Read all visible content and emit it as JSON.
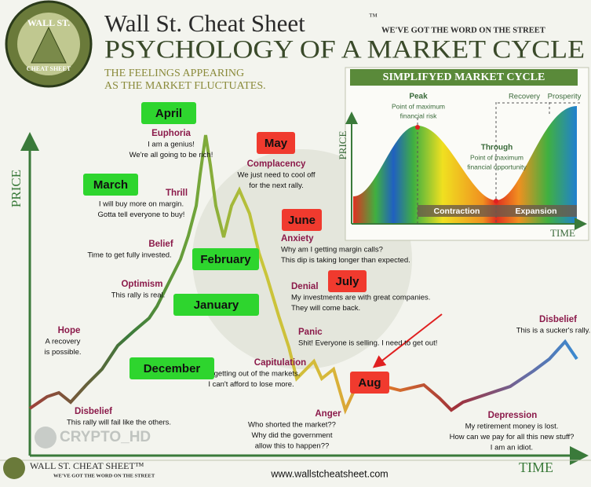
{
  "header": {
    "logo_top": "WALL ST.",
    "logo_bottom": "CHEAT SHEET",
    "title": "Wall St. Cheat Sheet",
    "trademark": "™",
    "tagline": "WE'VE GOT THE WORD ON THE STREET",
    "main_title": "PSYCHOLOGY OF A MARKET CYCLE",
    "subtitle": [
      "THE FEELINGS APPEARING",
      "AS THE MARKET FLUCTUATES."
    ]
  },
  "axes": {
    "y_label": "PRICE",
    "x_label": "TIME"
  },
  "emotions": [
    {
      "name": "Disbelief",
      "lines": [
        "This rally will fail like the others."
      ]
    },
    {
      "name": "Hope",
      "lines": [
        "A recovery",
        "is possible."
      ]
    },
    {
      "name": "Optimism",
      "lines": [
        "This rally is real."
      ]
    },
    {
      "name": "Belief",
      "lines": [
        "Time to get fully invested."
      ]
    },
    {
      "name": "Thrill",
      "lines": [
        "I will buy more on margin.",
        "Gotta tell everyone to buy!"
      ]
    },
    {
      "name": "Euphoria",
      "lines": [
        "I am a genius!",
        "We're all going to be rich!"
      ]
    },
    {
      "name": "Complacency",
      "lines": [
        "We just need to cool off",
        "for the next rally."
      ]
    },
    {
      "name": "Anxiety",
      "lines": [
        "Why am I getting margin calls?",
        "This dip is taking longer than expected."
      ]
    },
    {
      "name": "Denial",
      "lines": [
        "My investments are with great companies.",
        "They will come back."
      ]
    },
    {
      "name": "Panic",
      "lines": [
        "Shit! Everyone is selling. I need to get out!"
      ]
    },
    {
      "name": "Capitulation",
      "lines": [
        "I'm getting out of the markets.",
        "I can't afford to lose more."
      ]
    },
    {
      "name": "Anger",
      "lines": [
        "Who shorted the market??",
        "Why did the government",
        "allow this to happen??"
      ]
    },
    {
      "name": "Depression",
      "lines": [
        "My retirement money is lost.",
        "How can we pay for all this new stuff?",
        "I am an idiot."
      ]
    },
    {
      "name": "Disbelief",
      "lines": [
        "This is a sucker's rally."
      ]
    }
  ],
  "months": [
    {
      "label": "April",
      "color": "#2ed52e"
    },
    {
      "label": "May",
      "color": "#f03a2e"
    },
    {
      "label": "March",
      "color": "#2ed52e"
    },
    {
      "label": "June",
      "color": "#f03a2e"
    },
    {
      "label": "February",
      "color": "#2ed52e"
    },
    {
      "label": "July",
      "color": "#f03a2e"
    },
    {
      "label": "January",
      "color": "#2ed52e"
    },
    {
      "label": "December",
      "color": "#2ed52e"
    },
    {
      "label": "Aug",
      "color": "#f03a2e"
    }
  ],
  "inset": {
    "title": "SIMPLIFYED MARKET CYCLE",
    "peak": "Peak",
    "peak_lines": [
      "Point of maximum",
      "financial risk"
    ],
    "through": "Through",
    "through_lines": [
      "Point of maximum",
      "financial opportunity"
    ],
    "recovery": "Recovery",
    "prosperity": "Prosperity",
    "contraction": "Contraction",
    "expansion": "Expansion",
    "y_label": "PRICE",
    "x_label": "TIME"
  },
  "watermark": "CRYPTO_HD",
  "footer": {
    "brand": "WALL ST. CHEAT SHEET™",
    "tagline": "WE'VE GOT THE WORD ON THE STREET",
    "url": "www.wallstcheatsheet.com"
  }
}
